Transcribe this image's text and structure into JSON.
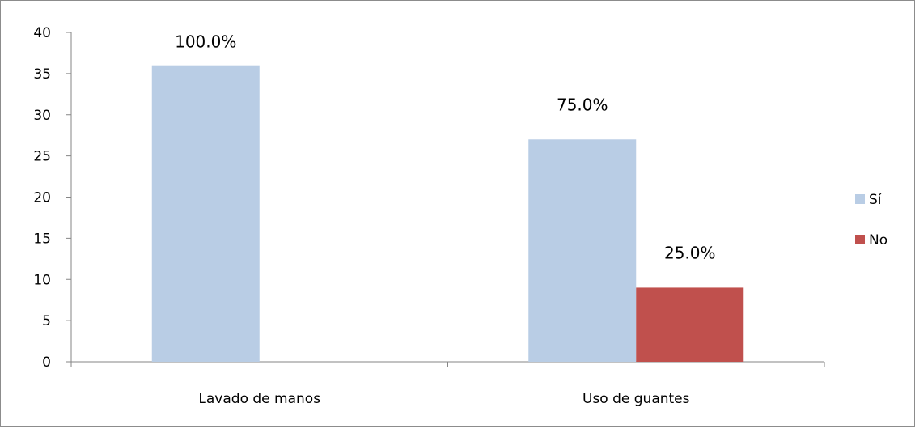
{
  "chart_data": {
    "type": "bar",
    "categories": [
      "Lavado de manos",
      "Uso de guantes"
    ],
    "series": [
      {
        "name": "Sí",
        "color": "#b9cde5",
        "values": [
          36,
          27
        ],
        "labels": [
          "100.0%",
          "75.0%"
        ]
      },
      {
        "name": "No",
        "color": "#c0504d",
        "values": [
          0,
          9
        ],
        "labels": [
          "",
          "25.0%"
        ]
      }
    ],
    "ylim": [
      0,
      40
    ],
    "yticks": [
      0,
      5,
      10,
      15,
      20,
      25,
      30,
      35,
      40
    ],
    "grid": false,
    "legend_position": "right"
  }
}
